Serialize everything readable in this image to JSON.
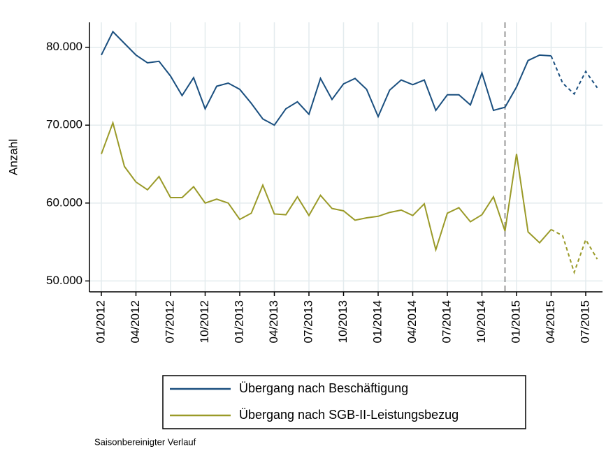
{
  "chart_data": {
    "type": "line",
    "y_label": "Anzahl",
    "note": "Saisonbereinigter Verlauf",
    "categories": [
      "01/2012",
      null,
      null,
      "04/2012",
      null,
      null,
      "07/2012",
      null,
      null,
      "10/2012",
      null,
      null,
      "01/2013",
      null,
      null,
      "04/2013",
      null,
      null,
      "07/2013",
      null,
      null,
      "10/2013",
      null,
      null,
      "01/2014",
      null,
      null,
      "04/2014",
      null,
      null,
      "07/2014",
      null,
      null,
      "10/2014",
      null,
      null,
      "01/2015",
      null,
      null,
      "04/2015",
      null,
      null,
      "07/2015",
      null
    ],
    "series": [
      {
        "name": "Übergang nach Beschäftigung",
        "color": "#1a4f7f",
        "values": [
          79000,
          82000,
          80500,
          79000,
          78000,
          78200,
          76300,
          73800,
          76100,
          72100,
          75000,
          75400,
          74600,
          72800,
          70800,
          70000,
          72100,
          73000,
          71400,
          76000,
          73300,
          75300,
          76000,
          74600,
          71100,
          74500,
          75800,
          75200,
          75800,
          71900,
          73900,
          73900,
          72600,
          76700,
          71900,
          72300,
          74900,
          78300,
          79000,
          78900,
          75400,
          74000,
          76900,
          74800
        ]
      },
      {
        "name": "Übergang nach SGB-II-Leistungsbezug",
        "color": "#9a9a28",
        "values": [
          66300,
          70300,
          64700,
          62700,
          61700,
          63400,
          60700,
          60700,
          62100,
          60000,
          60500,
          60000,
          57900,
          58700,
          62300,
          58600,
          58500,
          60800,
          58400,
          61000,
          59300,
          59000,
          57800,
          58100,
          58300,
          58800,
          59100,
          58400,
          59900,
          54000,
          58700,
          59400,
          57600,
          58500,
          60800,
          56400,
          66300,
          56300,
          54900,
          56600,
          55800,
          51100,
          55300,
          52800
        ]
      }
    ],
    "dashed_from": 39,
    "vline_at": 35,
    "ylim": [
      48600,
      83200
    ],
    "yticks": [
      {
        "value": 50000,
        "label": "50.000"
      },
      {
        "value": 60000,
        "label": "60.000"
      },
      {
        "value": 70000,
        "label": "70.000"
      },
      {
        "value": 80000,
        "label": "80.000"
      }
    ],
    "grid": true
  }
}
